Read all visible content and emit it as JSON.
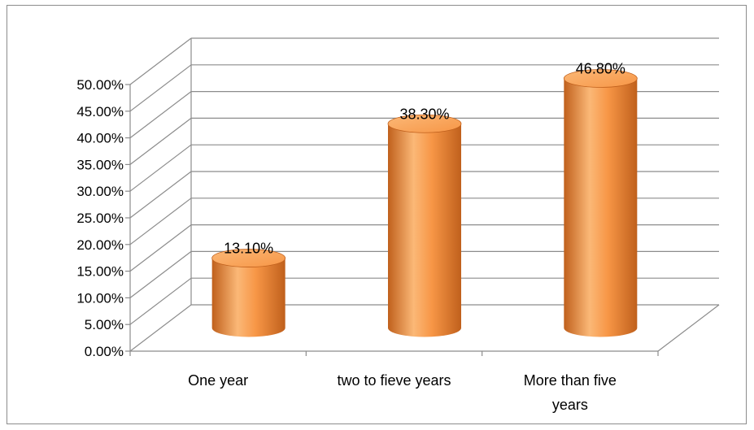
{
  "chart_data": {
    "type": "bar",
    "style": "3d-cylinder",
    "categories": [
      "One year",
      "two to fieve years",
      "More than five years"
    ],
    "values": [
      13.1,
      38.3,
      46.8
    ],
    "data_labels": [
      "13.10%",
      "38.30%",
      "46.80%"
    ],
    "ylim": [
      0,
      50
    ],
    "y_tick_step": 5,
    "y_tick_labels": [
      "0.00%",
      "5.00%",
      "10.00%",
      "15.00%",
      "20.00%",
      "25.00%",
      "30.00%",
      "35.00%",
      "40.00%",
      "45.00%",
      "50.00%"
    ],
    "grid": true,
    "legend": "none",
    "bar_color": "#f79646",
    "bar_dark": "#c0601c",
    "bar_light": "#fbb877"
  }
}
